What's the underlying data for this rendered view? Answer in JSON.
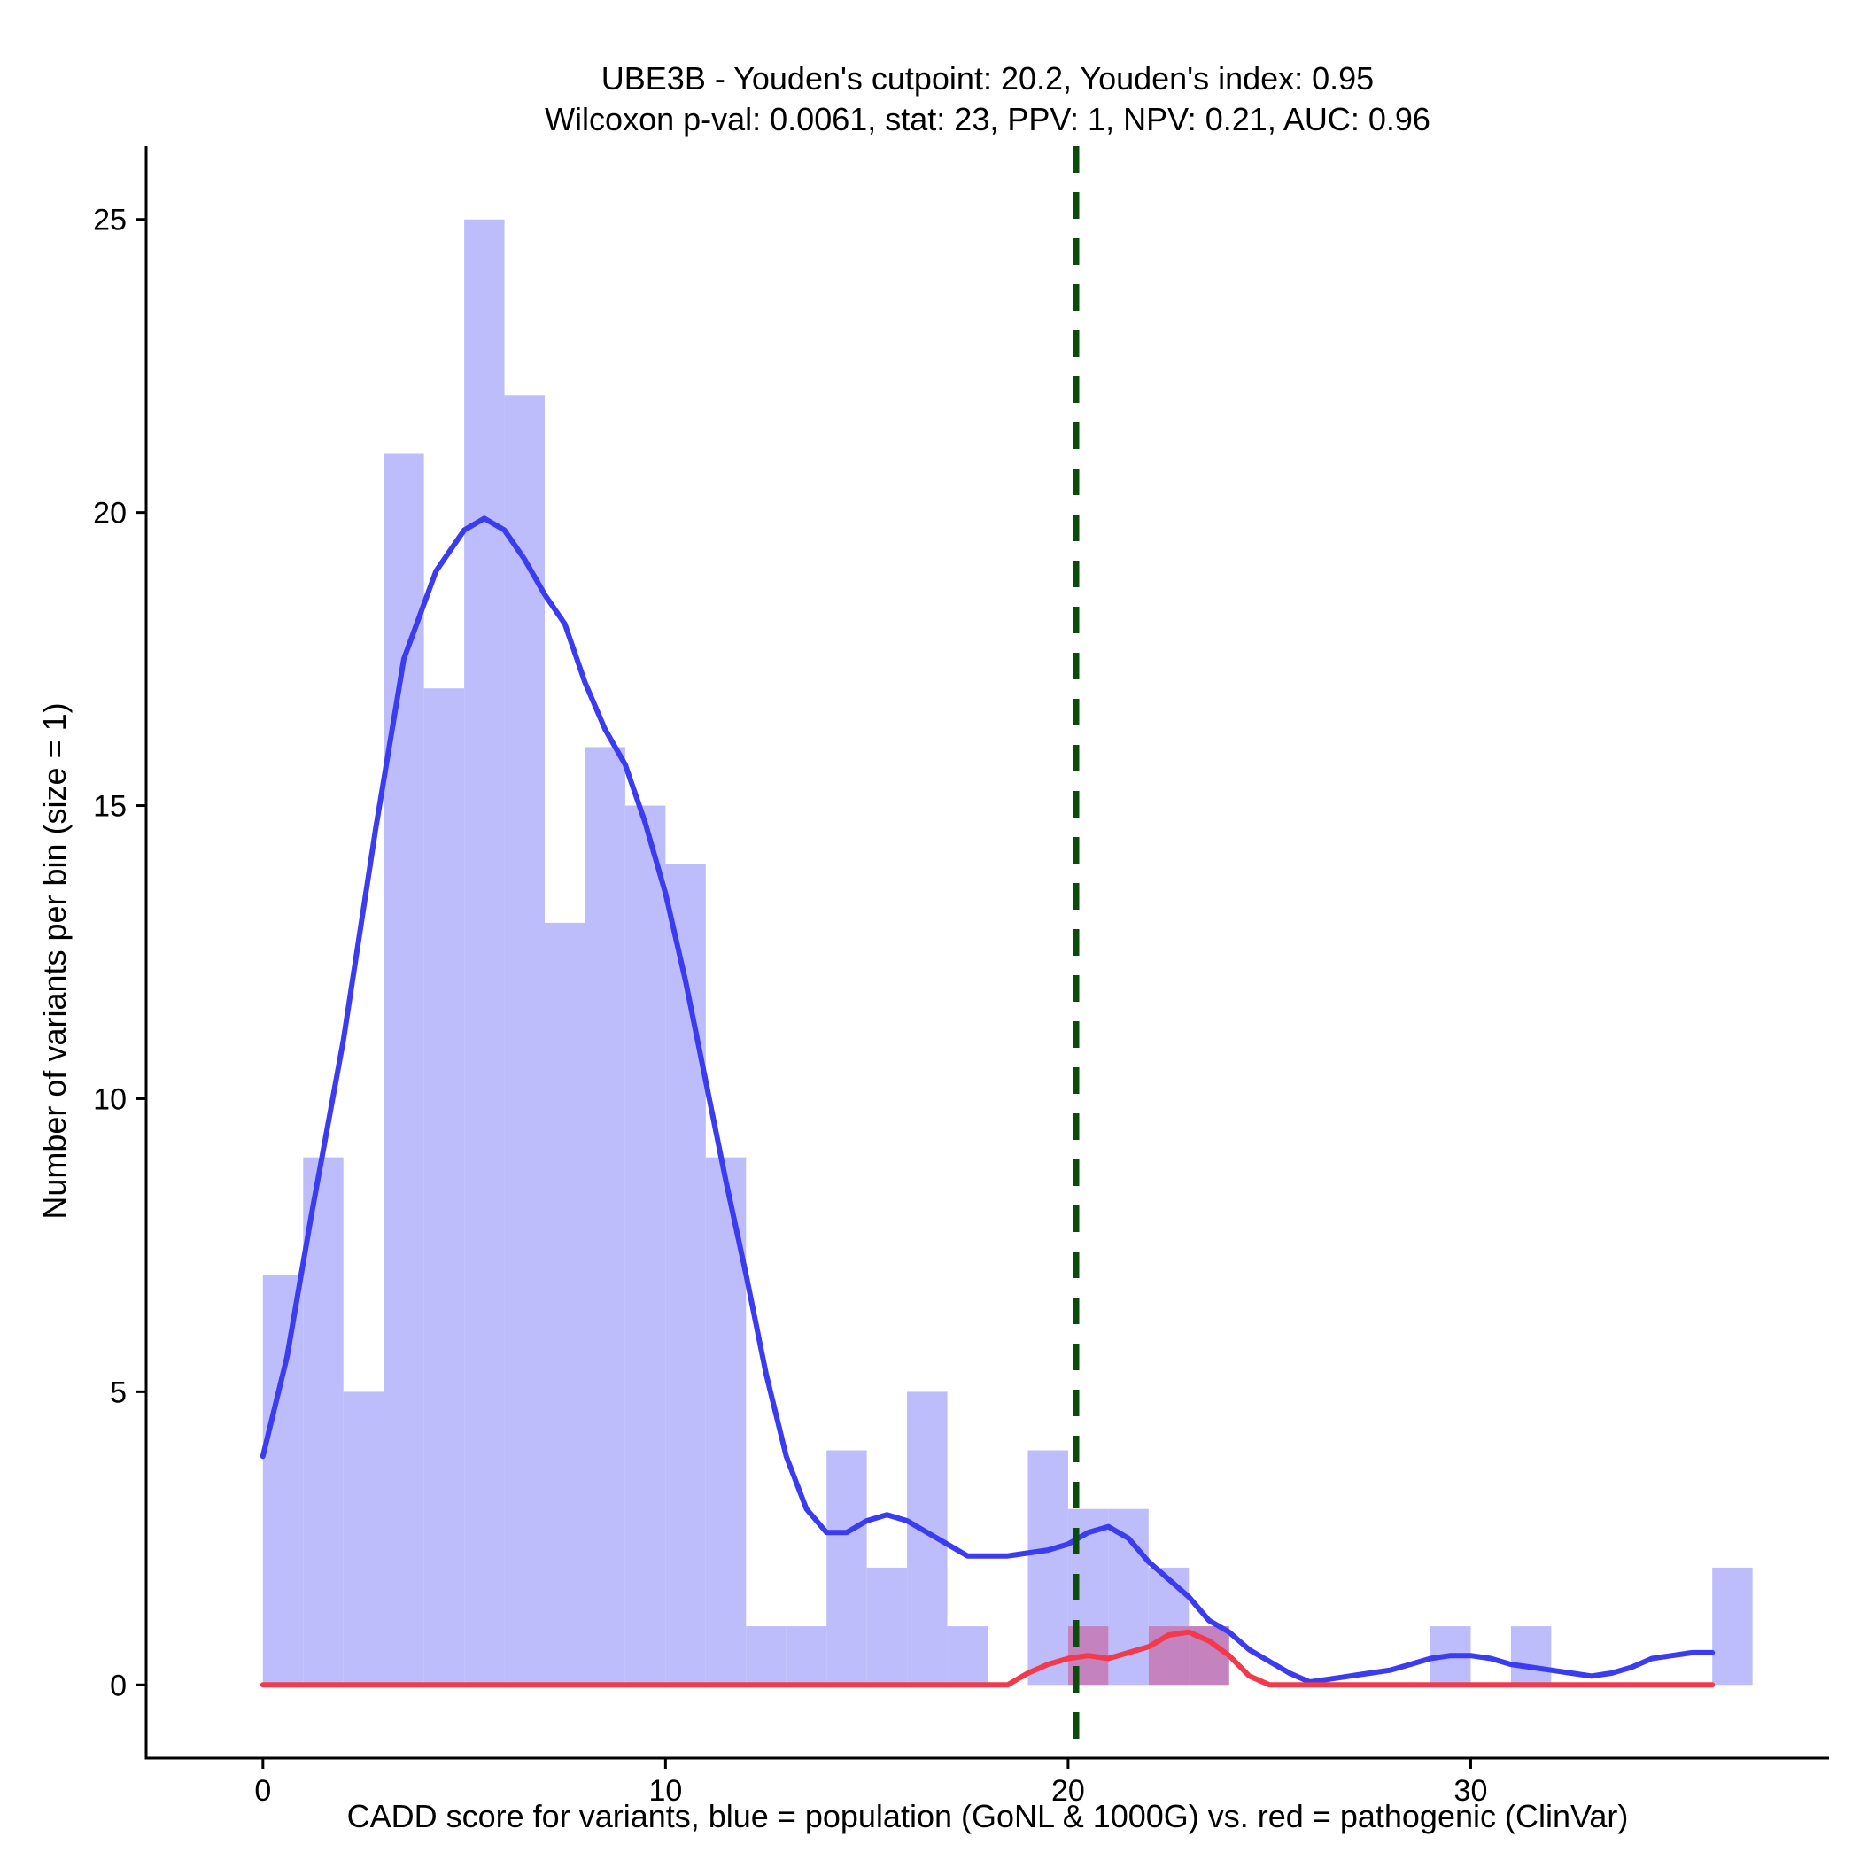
{
  "chart_data": {
    "type": "bar",
    "title_line1": "UBE3B - Youden's cutpoint: 20.2, Youden's index: 0.95",
    "title_line2": "Wilcoxon p-val: 0.0061, stat: 23, PPV: 1, NPV: 0.21, AUC: 0.96",
    "xlabel": "CADD score for variants, blue = population (GoNL & 1000G) vs. red = pathogenic (ClinVar)",
    "ylabel": "Number of variants per bin (size = 1)",
    "xlim": [
      -2.9,
      38.9
    ],
    "ylim": [
      -1.25,
      26.25
    ],
    "x_ticks": [
      0,
      10,
      20,
      30
    ],
    "y_ticks": [
      0,
      5,
      10,
      15,
      20,
      25
    ],
    "bin_width": 1,
    "cutpoint": 20.2,
    "series": [
      {
        "name": "population (GoNL & 1000G)",
        "color": "#bdbdfc",
        "line_color": "#3b3bf0",
        "bin_starts": [
          0,
          1,
          2,
          3,
          4,
          5,
          6,
          7,
          8,
          9,
          10,
          11,
          12,
          13,
          14,
          15,
          16,
          17,
          18,
          19,
          20,
          21,
          22,
          23,
          24,
          25,
          26,
          27,
          28,
          29,
          30,
          31,
          32,
          33,
          34,
          35,
          36
        ],
        "values": [
          7,
          9,
          5,
          21,
          17,
          25,
          22,
          13,
          16,
          15,
          14,
          9,
          1,
          1,
          4,
          2,
          5,
          1,
          0,
          4,
          3,
          3,
          2,
          1,
          0,
          0,
          0,
          0,
          0,
          1,
          0,
          1,
          0,
          0,
          0,
          0,
          2
        ],
        "density_curve": [
          [
            0,
            3.9
          ],
          [
            0.6,
            5.6
          ],
          [
            1.2,
            8.0
          ],
          [
            2,
            11.0
          ],
          [
            2.8,
            14.6
          ],
          [
            3.5,
            17.5
          ],
          [
            4.3,
            19.0
          ],
          [
            5,
            19.7
          ],
          [
            5.5,
            19.9
          ],
          [
            6,
            19.7
          ],
          [
            6.5,
            19.2
          ],
          [
            7,
            18.6
          ],
          [
            7.5,
            18.1
          ],
          [
            8,
            17.1
          ],
          [
            8.5,
            16.3
          ],
          [
            9,
            15.7
          ],
          [
            9.5,
            14.7
          ],
          [
            10,
            13.5
          ],
          [
            10.5,
            12.0
          ],
          [
            11,
            10.3
          ],
          [
            11.5,
            8.6
          ],
          [
            12,
            7.0
          ],
          [
            12.5,
            5.3
          ],
          [
            13,
            3.9
          ],
          [
            13.5,
            3.0
          ],
          [
            14,
            2.6
          ],
          [
            14.5,
            2.6
          ],
          [
            15,
            2.8
          ],
          [
            15.5,
            2.9
          ],
          [
            16,
            2.8
          ],
          [
            16.5,
            2.6
          ],
          [
            17,
            2.4
          ],
          [
            17.5,
            2.2
          ],
          [
            18,
            2.2
          ],
          [
            18.5,
            2.2
          ],
          [
            19,
            2.25
          ],
          [
            19.5,
            2.3
          ],
          [
            20,
            2.4
          ],
          [
            20.5,
            2.6
          ],
          [
            21,
            2.7
          ],
          [
            21.5,
            2.5
          ],
          [
            22,
            2.1
          ],
          [
            22.5,
            1.8
          ],
          [
            23,
            1.5
          ],
          [
            23.5,
            1.1
          ],
          [
            24,
            0.9
          ],
          [
            24.5,
            0.6
          ],
          [
            25,
            0.4
          ],
          [
            25.5,
            0.2
          ],
          [
            26,
            0.05
          ],
          [
            26.5,
            0.1
          ],
          [
            27,
            0.15
          ],
          [
            27.5,
            0.2
          ],
          [
            28,
            0.25
          ],
          [
            28.5,
            0.35
          ],
          [
            29,
            0.45
          ],
          [
            29.5,
            0.5
          ],
          [
            30,
            0.5
          ],
          [
            30.5,
            0.45
          ],
          [
            31,
            0.35
          ],
          [
            31.5,
            0.3
          ],
          [
            32,
            0.25
          ],
          [
            32.5,
            0.2
          ],
          [
            33,
            0.15
          ],
          [
            33.5,
            0.2
          ],
          [
            34,
            0.3
          ],
          [
            34.5,
            0.45
          ],
          [
            35,
            0.5
          ],
          [
            35.5,
            0.55
          ],
          [
            36,
            0.55
          ]
        ]
      },
      {
        "name": "pathogenic (ClinVar)",
        "color": "#cc3a73",
        "line_color": "#f23a4c",
        "bin_starts": [
          20,
          22,
          23
        ],
        "values": [
          1,
          1,
          1
        ],
        "density_curve": [
          [
            0,
            0
          ],
          [
            18.5,
            0
          ],
          [
            19,
            0.2
          ],
          [
            19.5,
            0.35
          ],
          [
            20,
            0.45
          ],
          [
            20.5,
            0.5
          ],
          [
            21,
            0.45
          ],
          [
            21.5,
            0.55
          ],
          [
            22,
            0.65
          ],
          [
            22.5,
            0.85
          ],
          [
            23,
            0.9
          ],
          [
            23.5,
            0.75
          ],
          [
            24,
            0.5
          ],
          [
            24.5,
            0.15
          ],
          [
            25,
            0
          ],
          [
            36,
            0
          ]
        ]
      }
    ]
  }
}
